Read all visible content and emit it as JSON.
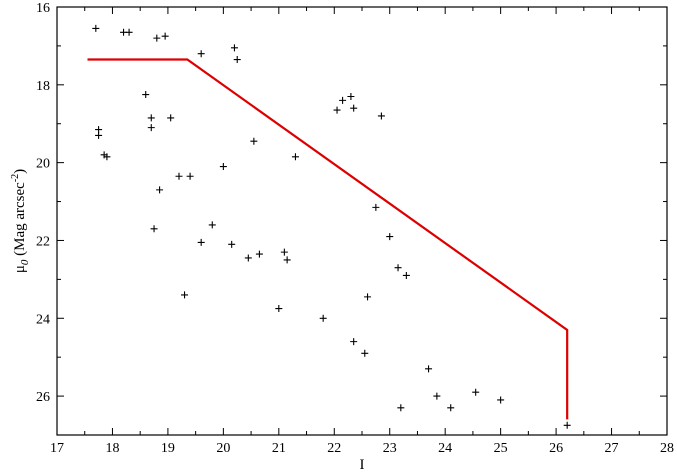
{
  "chart_data": {
    "type": "scatter",
    "title": "",
    "xlabel": "I",
    "ylabel": {
      "main": "μ",
      "sub": "0",
      "unit": " (Mag arcsec",
      "exp": "-2",
      "close": ")"
    },
    "xlim": [
      17,
      28
    ],
    "ylim": [
      27,
      16
    ],
    "y_inverted": true,
    "x_ticks": [
      "17",
      "18",
      "19",
      "20",
      "21",
      "22",
      "23",
      "24",
      "25",
      "26",
      "27",
      "28"
    ],
    "y_ticks": [
      "16",
      "18",
      "20",
      "22",
      "24",
      "26"
    ],
    "grid": false,
    "legend": "none",
    "series": [
      {
        "kind": "scatter",
        "marker": "plus",
        "color": "#000000",
        "points": [
          [
            17.7,
            16.55
          ],
          [
            18.2,
            16.65
          ],
          [
            18.3,
            16.65
          ],
          [
            18.8,
            16.8
          ],
          [
            18.95,
            16.75
          ],
          [
            19.6,
            17.2
          ],
          [
            20.2,
            17.05
          ],
          [
            20.25,
            17.35
          ],
          [
            17.75,
            19.15
          ],
          [
            17.75,
            19.3
          ],
          [
            17.85,
            19.8
          ],
          [
            17.9,
            19.85
          ],
          [
            18.6,
            18.25
          ],
          [
            18.7,
            18.85
          ],
          [
            18.7,
            19.1
          ],
          [
            18.75,
            21.7
          ],
          [
            18.85,
            20.7
          ],
          [
            19.05,
            18.85
          ],
          [
            19.2,
            20.35
          ],
          [
            19.3,
            23.4
          ],
          [
            19.4,
            20.35
          ],
          [
            19.6,
            22.05
          ],
          [
            19.8,
            21.6
          ],
          [
            20.0,
            20.1
          ],
          [
            20.15,
            22.1
          ],
          [
            20.45,
            22.45
          ],
          [
            20.55,
            19.45
          ],
          [
            20.65,
            22.35
          ],
          [
            21.0,
            23.75
          ],
          [
            21.1,
            22.3
          ],
          [
            21.15,
            22.5
          ],
          [
            21.3,
            19.85
          ],
          [
            21.8,
            24.0
          ],
          [
            22.05,
            18.65
          ],
          [
            22.15,
            18.4
          ],
          [
            22.3,
            18.3
          ],
          [
            22.35,
            18.6
          ],
          [
            22.85,
            18.8
          ],
          [
            22.75,
            21.15
          ],
          [
            22.6,
            23.45
          ],
          [
            22.55,
            24.9
          ],
          [
            22.35,
            24.6
          ],
          [
            23.0,
            21.9
          ],
          [
            23.15,
            22.7
          ],
          [
            23.3,
            22.9
          ],
          [
            23.7,
            25.3
          ],
          [
            23.85,
            26.0
          ],
          [
            24.1,
            26.3
          ],
          [
            23.2,
            26.3
          ],
          [
            24.55,
            25.9
          ],
          [
            25.0,
            26.1
          ],
          [
            26.2,
            26.75
          ]
        ]
      },
      {
        "kind": "line",
        "color": "#dd0000",
        "points": [
          [
            17.55,
            17.35
          ],
          [
            19.35,
            17.35
          ],
          [
            26.2,
            24.3
          ],
          [
            26.2,
            26.6
          ]
        ]
      }
    ]
  }
}
